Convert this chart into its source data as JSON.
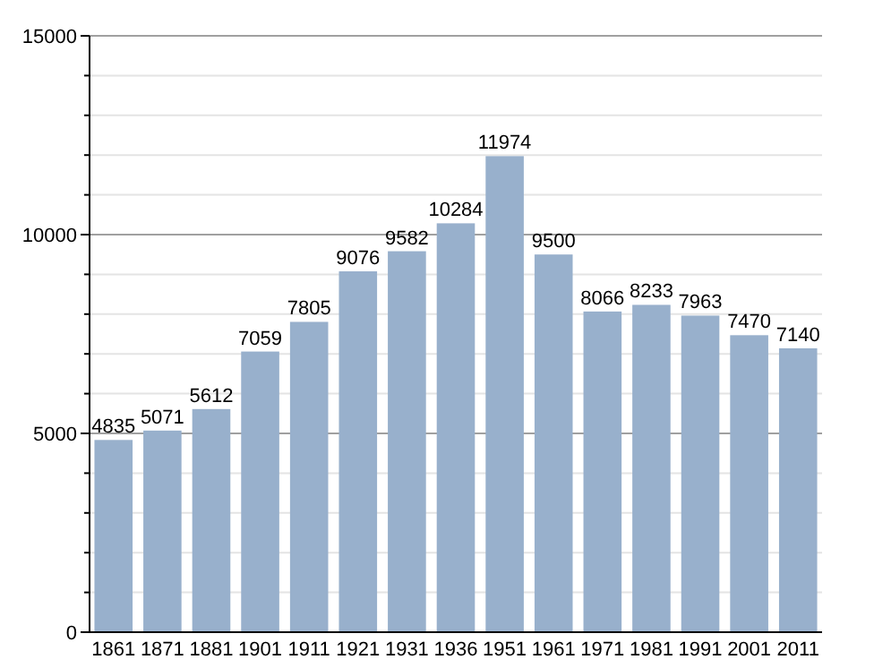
{
  "chart_data": {
    "type": "bar",
    "categories": [
      "1861",
      "1871",
      "1881",
      "1901",
      "1911",
      "1921",
      "1931",
      "1936",
      "1951",
      "1961",
      "1971",
      "1981",
      "1991",
      "2001",
      "2011"
    ],
    "values": [
      4835,
      5071,
      5612,
      7059,
      7805,
      9076,
      9582,
      10284,
      11974,
      9500,
      8066,
      8233,
      7963,
      7470,
      7140
    ],
    "color": "#98b0cc",
    "ylim": [
      0,
      15000
    ],
    "yticks": [
      0,
      {
        "value": 1000,
        "label": null
      },
      {
        "value": 2000,
        "label": null
      },
      {
        "value": 3000,
        "label": null
      },
      {
        "value": 4000,
        "label": null
      },
      5000,
      {
        "value": 6000,
        "label": null
      },
      {
        "value": 7000,
        "label": null
      },
      {
        "value": 8000,
        "label": null
      },
      {
        "value": 9000,
        "label": null
      },
      10000,
      {
        "value": 11000,
        "label": null
      },
      {
        "value": 12000,
        "label": null
      },
      {
        "value": 13000,
        "label": null
      },
      {
        "value": 14000,
        "label": null
      },
      15000
    ],
    "grid": "y",
    "data_labels": true
  }
}
